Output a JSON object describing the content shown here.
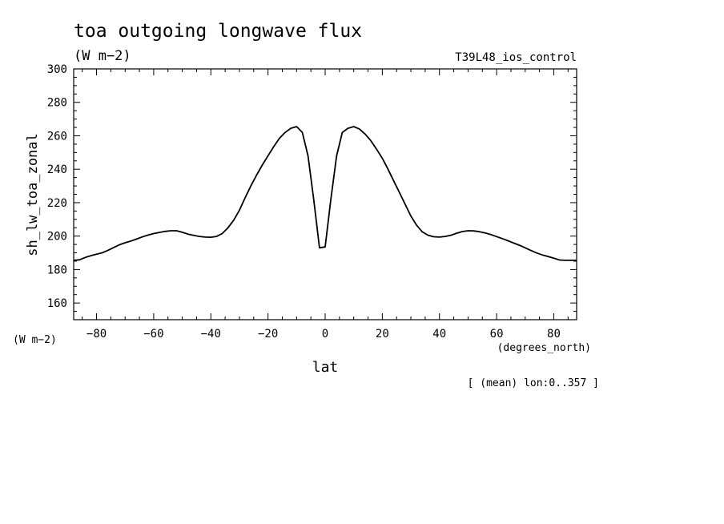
{
  "chart_data": {
    "type": "line",
    "title": "toa outgoing longwave flux",
    "subtitle": "(W m−2)",
    "run_label": "T39L48_ios_control",
    "ylabel": "sh_lw_toa_zonal",
    "yunits": "(W m−2)",
    "xlabel": "lat",
    "xunits": "(degrees_north)",
    "footnote": "[ (mean) lon:0..357 ]",
    "xlim": [
      -88,
      88
    ],
    "ylim": [
      150,
      300
    ],
    "xticks": [
      -80,
      -60,
      -40,
      -20,
      0,
      20,
      40,
      60,
      80
    ],
    "xtick_labels": [
      "−80",
      "−60",
      "−40",
      "−20",
      "0",
      "20",
      "40",
      "60",
      "80"
    ],
    "yticks": [
      160,
      180,
      200,
      220,
      240,
      260,
      280,
      300
    ],
    "ytick_labels": [
      "160",
      "180",
      "200",
      "220",
      "240",
      "260",
      "280",
      "300"
    ],
    "grid": false,
    "series": [
      {
        "x": [
          -88,
          -86,
          -84,
          -82,
          -80,
          -78,
          -76,
          -74,
          -72,
          -70,
          -68,
          -66,
          -64,
          -62,
          -60,
          -58,
          -56,
          -54,
          -52,
          -50,
          -48,
          -46,
          -44,
          -42,
          -40,
          -38,
          -36,
          -34,
          -32,
          -30,
          -28,
          -26,
          -24,
          -22,
          -20,
          -18,
          -16,
          -14,
          -12,
          -10,
          -8,
          -6,
          -4,
          -2,
          0,
          2,
          4,
          6,
          8,
          10,
          12,
          14,
          16,
          18,
          20,
          22,
          24,
          26,
          28,
          30,
          32,
          34,
          36,
          38,
          40,
          42,
          44,
          46,
          48,
          50,
          52,
          54,
          56,
          58,
          60,
          62,
          64,
          66,
          68,
          70,
          72,
          74,
          76,
          78,
          80,
          82,
          84,
          86,
          88
        ],
        "y": [
          185.5,
          185.8,
          187.2,
          188.3,
          189.2,
          190.0,
          191.5,
          193.2,
          194.8,
          196.0,
          197.0,
          198.2,
          199.5,
          200.6,
          201.5,
          202.2,
          202.8,
          203.2,
          203.2,
          202.3,
          201.2,
          200.4,
          199.8,
          199.4,
          199.3,
          199.8,
          201.5,
          205.0,
          209.5,
          215.5,
          223.0,
          230.0,
          236.5,
          242.5,
          248.0,
          253.5,
          258.5,
          262.0,
          264.5,
          265.5,
          262.0,
          248.0,
          222.0,
          193.0,
          193.5,
          222.0,
          248.0,
          262.0,
          264.5,
          265.5,
          264.0,
          261.0,
          257.0,
          252.0,
          246.5,
          240.0,
          233.0,
          226.0,
          219.0,
          212.0,
          206.5,
          202.5,
          200.5,
          199.6,
          199.4,
          199.8,
          200.5,
          201.7,
          202.7,
          203.2,
          203.1,
          202.6,
          201.9,
          200.9,
          199.7,
          198.5,
          197.2,
          195.8,
          194.5,
          193.0,
          191.4,
          189.9,
          188.7,
          187.8,
          186.8,
          185.7,
          185.5,
          185.5,
          185.5
        ]
      }
    ]
  }
}
